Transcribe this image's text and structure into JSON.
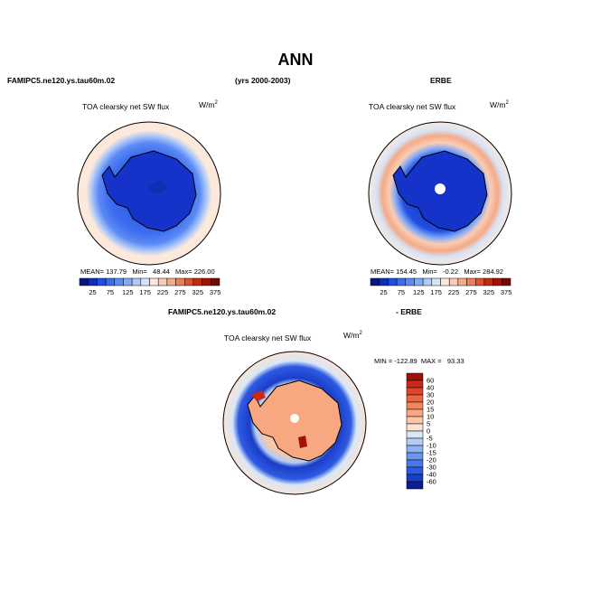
{
  "header": {
    "title": "ANN",
    "model_case": "FAMIPC5.ne120.ys.tau60m.02",
    "years": "(yrs 2000-2003)",
    "obs_name": "ERBE",
    "diff_left": "FAMIPC5.ne120.ys.tau60m.02",
    "diff_right": "- ERBE"
  },
  "panels": {
    "model": {
      "field": "TOA clearsky net SW flux",
      "units": "W/m",
      "units_sup": "2",
      "stats": "MEAN= 137.79   Min=   48.44   Max= 226.00"
    },
    "obs": {
      "field": "TOA clearsky net SW flux",
      "units": "W/m",
      "units_sup": "2",
      "stats": "MEAN= 154.45   Min=   -0.22   Max= 284.92"
    },
    "diff": {
      "field": "TOA clearsky net SW flux",
      "units": "W/m",
      "units_sup": "2",
      "stats": "MIN = -122.89  MAX =   93.33"
    }
  },
  "chart_data": [
    {
      "type": "heatmap",
      "name": "model",
      "projection": "south polar stereographic",
      "title": "TOA clearsky net SW flux",
      "units": "W/m2",
      "colorbar": {
        "orientation": "horizontal",
        "tick_labels": [
          "25",
          "75",
          "125",
          "175",
          "225",
          "275",
          "325",
          "375"
        ],
        "levels": [
          25,
          50,
          75,
          100,
          125,
          150,
          175,
          200,
          225,
          250,
          275,
          300,
          325,
          350,
          375
        ],
        "colors": [
          "#08187a",
          "#0d2fb4",
          "#1f4ee0",
          "#3d6cef",
          "#5b8af5",
          "#83aaf7",
          "#afcaf7",
          "#d6e4f7",
          "#fde8dc",
          "#f9cdb5",
          "#f4aa88",
          "#ec7e5a",
          "#de5232",
          "#c32a14",
          "#9e1208",
          "#6e0a05"
        ]
      },
      "stats": {
        "mean": 137.79,
        "min": 48.44,
        "max": 226.0
      }
    },
    {
      "type": "heatmap",
      "name": "obs",
      "projection": "south polar stereographic",
      "title": "TOA clearsky net SW flux",
      "units": "W/m2",
      "colorbar": {
        "orientation": "horizontal",
        "tick_labels": [
          "25",
          "75",
          "125",
          "175",
          "225",
          "275",
          "325",
          "375"
        ]
      },
      "stats": {
        "mean": 154.45,
        "min": -0.22,
        "max": 284.92
      }
    },
    {
      "type": "heatmap",
      "name": "diff",
      "projection": "south polar stereographic",
      "title": "TOA clearsky net SW flux",
      "units": "W/m2",
      "colorbar": {
        "orientation": "vertical",
        "tick_labels": [
          "60",
          "40",
          "30",
          "20",
          "15",
          "10",
          "5",
          "0",
          "-5",
          "-10",
          "-15",
          "-20",
          "-30",
          "-40",
          "-60"
        ],
        "colors": [
          "#a01208",
          "#c82a16",
          "#e04428",
          "#ee6440",
          "#f4865e",
          "#f7a880",
          "#f9c7a6",
          "#fbe3d2",
          "#d8e6f7",
          "#b4cdf5",
          "#8eb2f2",
          "#6a95ee",
          "#4a78ea",
          "#2d5ae2",
          "#1b3dc8",
          "#0c1f8e"
        ]
      },
      "stats": {
        "min": -122.89,
        "max": 93.33
      }
    }
  ]
}
